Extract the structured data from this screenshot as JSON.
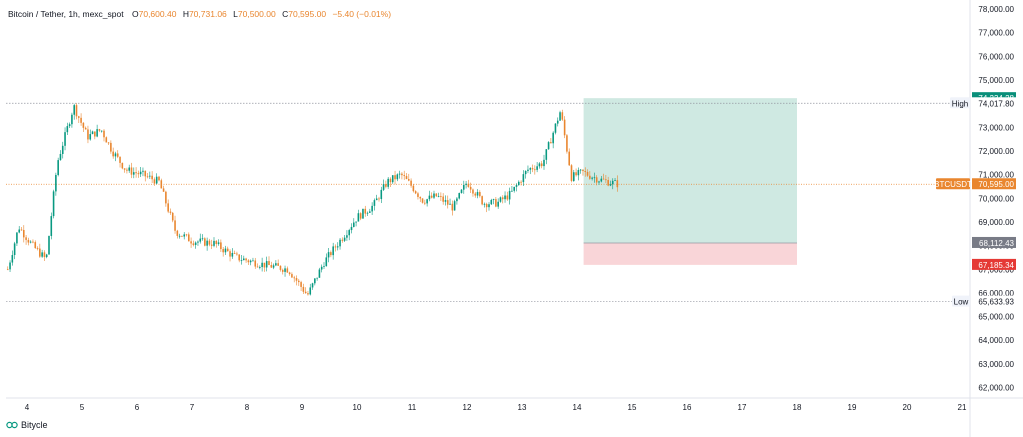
{
  "header": {
    "symbol": "Bitcoin / Tether, 1h, mexc_spot",
    "o_label": "O",
    "o_value": "70,600.40",
    "h_label": "H",
    "h_value": "70,731.06",
    "l_label": "L",
    "l_value": "70,500.00",
    "c_label": "C",
    "c_value": "70,595.00",
    "change": "−5.40 (−0.01%)"
  },
  "footer": {
    "brand": "Bitycle"
  },
  "colors": {
    "up": "#089981",
    "down": "#e9862f",
    "target_zone": "#cfe9e2",
    "stop_zone": "#f9d5d8",
    "target_label": "#0a8f7a",
    "stop_label": "#e53935",
    "entry_label": "#787b86",
    "price_label": "#e9862f"
  },
  "chart_data": {
    "type": "candlestick",
    "title": "",
    "symbol": "BTCUSDT",
    "interval": "1h",
    "y_axis": {
      "ticks": [
        "78,000.00",
        "77,000.00",
        "76,000.00",
        "75,000.00",
        "74,000.00",
        "73,000.00",
        "72,000.00",
        "71,000.00",
        "70,000.00",
        "69,000.00",
        "68,000.00",
        "67,000.00",
        "66,000.00",
        "65,000.00",
        "64,000.00",
        "63,000.00",
        "62,000.00"
      ],
      "ylim": [
        61600,
        78300
      ]
    },
    "x_axis": {
      "ticks": [
        "4",
        "5",
        "6",
        "7",
        "8",
        "9",
        "10",
        "11",
        "12",
        "13",
        "14",
        "15",
        "16",
        "17",
        "18",
        "19",
        "20",
        "21"
      ]
    },
    "grid": false,
    "anchors": [
      [
        3.65,
        67000
      ],
      [
        3.85,
        68800
      ],
      [
        4.1,
        68000
      ],
      [
        4.35,
        67400
      ],
      [
        4.55,
        71500
      ],
      [
        4.85,
        73900
      ],
      [
        5.1,
        72600
      ],
      [
        5.35,
        72900
      ],
      [
        5.55,
        72000
      ],
      [
        5.8,
        71200
      ],
      [
        6.1,
        71000
      ],
      [
        6.4,
        70700
      ],
      [
        6.7,
        68600
      ],
      [
        7.0,
        68200
      ],
      [
        7.4,
        68100
      ],
      [
        7.8,
        67500
      ],
      [
        8.3,
        67200
      ],
      [
        8.75,
        67000
      ],
      [
        9.1,
        65900
      ],
      [
        9.4,
        67300
      ],
      [
        9.75,
        68400
      ],
      [
        10.0,
        69200
      ],
      [
        10.3,
        69700
      ],
      [
        10.55,
        70700
      ],
      [
        10.8,
        71000
      ],
      [
        11.0,
        70500
      ],
      [
        11.2,
        69900
      ],
      [
        11.45,
        70100
      ],
      [
        11.75,
        69600
      ],
      [
        12.0,
        70700
      ],
      [
        12.3,
        69800
      ],
      [
        12.55,
        69800
      ],
      [
        12.8,
        70200
      ],
      [
        13.1,
        71200
      ],
      [
        13.38,
        71500
      ],
      [
        13.7,
        73700
      ],
      [
        13.9,
        70900
      ],
      [
        14.1,
        71100
      ],
      [
        14.4,
        70800
      ],
      [
        14.75,
        70600
      ]
    ],
    "markers": {
      "high": {
        "label": "High",
        "value": 74017.8,
        "text": "74,017.80"
      },
      "low": {
        "label": "Low",
        "value": 65633.93,
        "text": "65,633.93"
      }
    },
    "last_price": {
      "label": "BTCUSDT",
      "value": 70595.0,
      "text": "70,595.00"
    },
    "position": {
      "type": "long",
      "x_start": 14.12,
      "x_end": 18.0,
      "target": {
        "value": 74234.28,
        "text": "74,234.28"
      },
      "entry": {
        "value": 68112.43,
        "text": "68,112.43"
      },
      "stop": {
        "value": 67185.34,
        "text": "67,185.34"
      }
    }
  }
}
